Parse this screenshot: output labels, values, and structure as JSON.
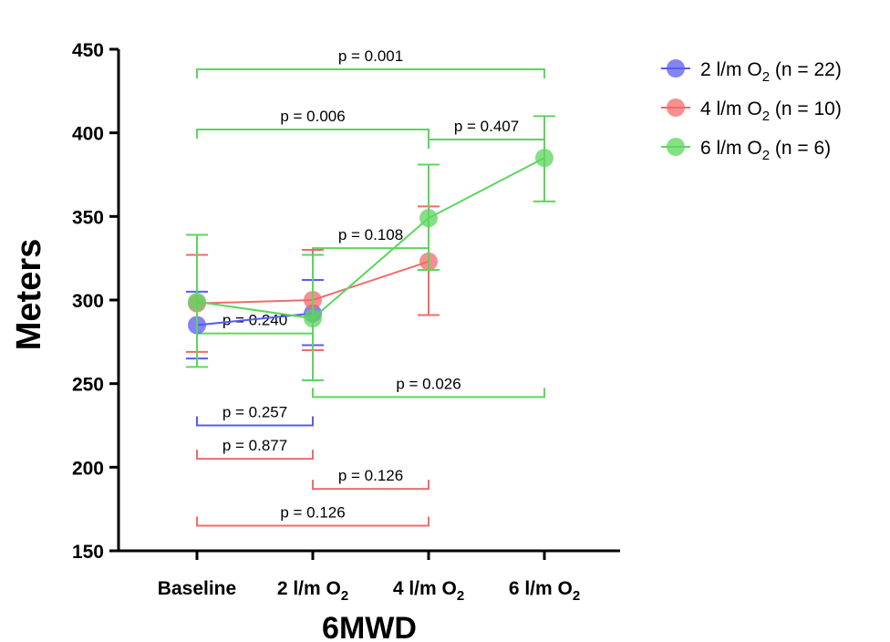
{
  "chart_data": {
    "type": "line",
    "xlabel": "6MWD",
    "ylabel": "Meters",
    "ylim": [
      150,
      450
    ],
    "yticks": [
      150,
      200,
      250,
      300,
      350,
      400,
      450
    ],
    "categories": [
      {
        "main": "Baseline",
        "sub": ""
      },
      {
        "main": "2 l/m O",
        "sub": "2"
      },
      {
        "main": "4 l/m O",
        "sub": "2"
      },
      {
        "main": "6 l/m O",
        "sub": "2"
      }
    ],
    "grid": false,
    "legend_position": "top-right",
    "series": [
      {
        "name": "2 l/m O",
        "name_sub": "2",
        "name_suffix": " (n = 22)",
        "color": "#5b5bf0",
        "points": [
          {
            "x": 0,
            "y": 285,
            "err_low": 265,
            "err_high": 305
          },
          {
            "x": 1,
            "y": 292,
            "err_low": 273,
            "err_high": 312
          }
        ]
      },
      {
        "name": "4 l/m O",
        "name_sub": "2",
        "name_suffix": " (n = 10)",
        "color": "#f06b6b",
        "points": [
          {
            "x": 0,
            "y": 298,
            "err_low": 269,
            "err_high": 327
          },
          {
            "x": 1,
            "y": 300,
            "err_low": 270,
            "err_high": 330
          },
          {
            "x": 2,
            "y": 323,
            "err_low": 291,
            "err_high": 356
          }
        ]
      },
      {
        "name": "6 l/m O",
        "name_sub": "2",
        "name_suffix": " (n = 6)",
        "color": "#5cd65c",
        "points": [
          {
            "x": 0,
            "y": 299,
            "err_low": 260,
            "err_high": 339
          },
          {
            "x": 1,
            "y": 289,
            "err_low": 252,
            "err_high": 327
          },
          {
            "x": 2,
            "y": 349,
            "err_low": 318,
            "err_high": 381
          },
          {
            "x": 3,
            "y": 385,
            "err_low": 359,
            "err_high": 410
          }
        ]
      }
    ],
    "comparisons": [
      {
        "from": 0,
        "to": 3,
        "y": 438,
        "label": "p = 0.001",
        "series": 2,
        "dir": "down"
      },
      {
        "from": 0,
        "to": 2,
        "y": 402,
        "label": "p = 0.006",
        "series": 2,
        "dir": "down"
      },
      {
        "from": 2,
        "to": 3,
        "y": 396,
        "label": "p = 0.407",
        "series": 2,
        "dir": "down"
      },
      {
        "from": 1,
        "to": 2,
        "y": 331,
        "label": "p = 0.108",
        "series": 2,
        "dir": "down"
      },
      {
        "from": 0,
        "to": 1,
        "y": 280,
        "label": "p = 0.240",
        "series": 2,
        "dir": "down"
      },
      {
        "from": 1,
        "to": 3,
        "y": 242,
        "label": "p = 0.026",
        "series": 2,
        "dir": "up"
      },
      {
        "from": 0,
        "to": 1,
        "y": 225,
        "label": "p = 0.257",
        "series": 0,
        "dir": "up"
      },
      {
        "from": 0,
        "to": 1,
        "y": 205,
        "label": "p = 0.877",
        "series": 1,
        "dir": "up"
      },
      {
        "from": 1,
        "to": 2,
        "y": 187,
        "label": "p = 0.126",
        "series": 1,
        "dir": "up"
      },
      {
        "from": 0,
        "to": 2,
        "y": 165,
        "label": "p = 0.126",
        "series": 1,
        "dir": "up"
      }
    ]
  }
}
